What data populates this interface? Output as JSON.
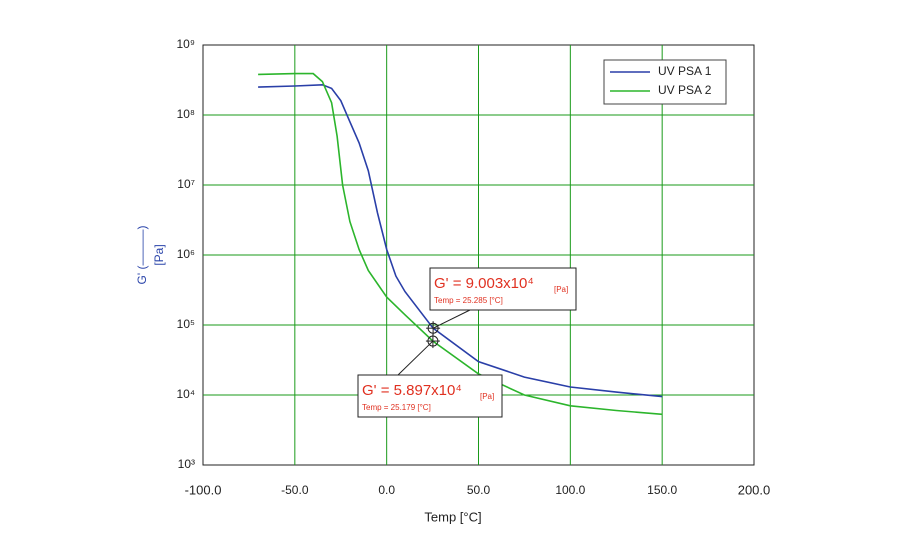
{
  "chart_data": {
    "type": "line",
    "log_y": true,
    "grid": true,
    "grid_color": "#1a9a1a",
    "legend": "top-right",
    "x_label": "Temp [°C]",
    "y_label": "G' (———)",
    "y_unit": "[Pa]",
    "y_label_color": "#2a44aa",
    "xlim": [
      -100,
      200
    ],
    "ylim": [
      1000,
      1000000000
    ],
    "xticks": [
      {
        "value": -100,
        "label": "-100.0"
      },
      {
        "value": -50,
        "label": "-50.0"
      },
      {
        "value": 0,
        "label": "0.0"
      },
      {
        "value": 50,
        "label": "50.0"
      },
      {
        "value": 100,
        "label": "100.0"
      },
      {
        "value": 150,
        "label": "150.0"
      },
      {
        "value": 200,
        "label": "200.0"
      }
    ],
    "yticks": [
      {
        "value": 1000,
        "label": "10³"
      },
      {
        "value": 10000,
        "label": "10⁴"
      },
      {
        "value": 100000,
        "label": "10⁵"
      },
      {
        "value": 1000000,
        "label": "10⁶"
      },
      {
        "value": 10000000,
        "label": "10⁷"
      },
      {
        "value": 100000000,
        "label": "10⁸"
      },
      {
        "value": 1000000000,
        "label": "10⁹"
      }
    ],
    "series": [
      {
        "name": "UV PSA 1",
        "color": "#2a3fa8",
        "x": [
          -70,
          -50,
          -35,
          -30,
          -25,
          -20,
          -15,
          -10,
          -5,
          0,
          5,
          10,
          25.285,
          50,
          75,
          100,
          125,
          150
        ],
        "values": [
          250000000,
          260000000,
          270000000,
          240000000,
          160000000,
          80000000,
          40000000,
          16000000,
          4000000,
          1200000,
          500000,
          300000,
          90030,
          30000,
          18000,
          13000,
          11000,
          9500
        ]
      },
      {
        "name": "UV PSA 2",
        "color": "#2cb52c",
        "x": [
          -70,
          -50,
          -40,
          -35,
          -30,
          -27,
          -24,
          -20,
          -15,
          -10,
          0,
          10,
          25.179,
          50,
          75,
          100,
          125,
          150
        ],
        "values": [
          380000000,
          390000000,
          390000000,
          300000000,
          150000000,
          50000000,
          10000000,
          3000000,
          1200000,
          600000,
          250000,
          140000,
          58970,
          20000,
          10000,
          7000,
          6000,
          5300
        ]
      }
    ],
    "annotations": [
      {
        "text": "G' = 9.003x10⁴",
        "unit": "[Pa]",
        "subtext": "Temp = 25.285 [°C]",
        "x": 25.285,
        "y": 90030
      },
      {
        "text": "G' = 5.897x10⁴",
        "unit": "[Pa]",
        "subtext": "Temp = 25.179 [°C]",
        "x": 25.179,
        "y": 58970
      }
    ]
  }
}
